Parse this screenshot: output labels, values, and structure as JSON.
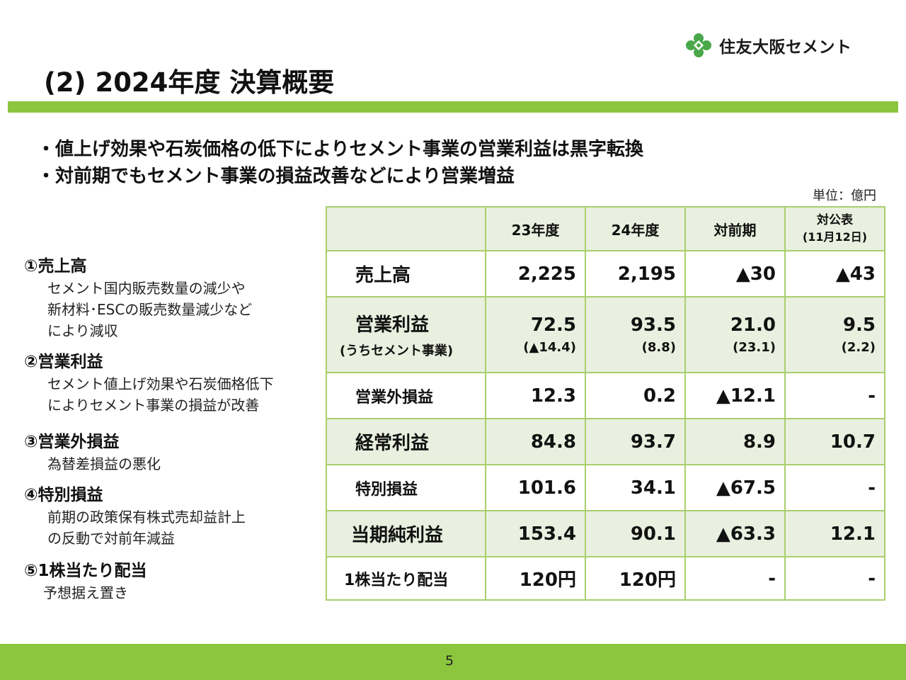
{
  "logo": {
    "text": "住友大阪セメント"
  },
  "title": "(2) 2024年度 決算概要",
  "bullets": [
    "・値上げ効果や石炭価格の低下によりセメント事業の営業利益は黒字転換",
    "・対前期でもセメント事業の損益改善などにより営業増益"
  ],
  "unit": "単位：億円",
  "notes": [
    {
      "head": "①売上高",
      "body": "セメント国内販売数量の減少や\n新材料･ESCの販売数量減少など\nにより減収"
    },
    {
      "head": "②営業利益",
      "body": "セメント値上げ効果や石炭価格低下\nによりセメント事業の損益が改善"
    },
    {
      "head": "③営業外損益",
      "body": "為替差損益の悪化"
    },
    {
      "head": "④特別損益",
      "body": "前期の政策保有株式売却益計上\nの反動で対前年減益"
    },
    {
      "head": "⑤1株当たり配当",
      "body": "予想据え置き"
    }
  ],
  "table": {
    "headers": [
      "",
      "23年度",
      "24年度",
      "対前期",
      "対公表"
    ],
    "header_sub": "(11月12日)",
    "rows": [
      {
        "label": "売上高",
        "values": [
          "2,225",
          "2,195",
          "▲30",
          "▲43"
        ]
      },
      {
        "label": "営業利益",
        "sublabel": "(うちセメント事業)",
        "values": [
          "72.5",
          "93.5",
          "21.0",
          "9.5"
        ],
        "subvalues": [
          "(▲14.4)",
          "(8.8)",
          "(23.1)",
          "(2.2)"
        ]
      },
      {
        "label": "営業外損益",
        "values": [
          "12.3",
          "0.2",
          "▲12.1",
          "-"
        ]
      },
      {
        "label": "経常利益",
        "values": [
          "84.8",
          "93.7",
          "8.9",
          "10.7"
        ]
      },
      {
        "label": "特別損益",
        "values": [
          "101.6",
          "34.1",
          "▲67.5",
          "-"
        ]
      },
      {
        "label": "当期純利益",
        "values": [
          "153.4",
          "90.1",
          "▲63.3",
          "12.1"
        ]
      },
      {
        "label": "1株当たり配当",
        "values": [
          "120円",
          "120円",
          "-",
          "-"
        ]
      }
    ]
  },
  "page_number": "5",
  "colors": {
    "accent_green": "#8cc63f",
    "table_border": "#a9cf6d",
    "table_shade": "#eaf0df"
  }
}
